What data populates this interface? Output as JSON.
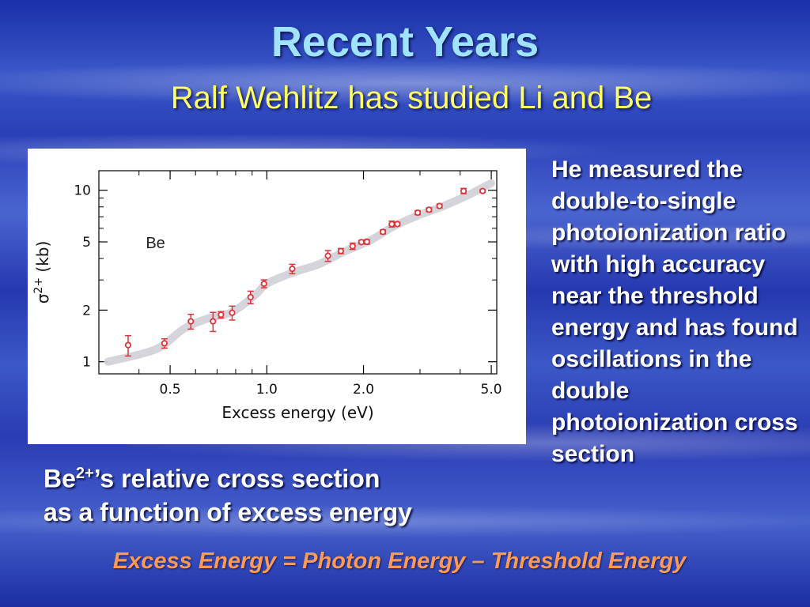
{
  "slide": {
    "title": "Recent Years",
    "subtitle": "Ralf Wehlitz has studied Li and Be",
    "side_text": "He measured the double-to-single photoionization ratio with high accuracy near the threshold energy and has found oscillations in the double photoionization cross section",
    "caption": {
      "prefix": "Be",
      "superscript": "2+",
      "suffix_line1": "’s relative cross section",
      "line2": "as a function of excess energy"
    },
    "formula": "Excess Energy = Photon Energy – Threshold Energy"
  },
  "chart_data": {
    "type": "scatter",
    "title": "",
    "annotation": "Be",
    "xlabel": "Excess energy (eV)",
    "ylabel": "σ2+ (kb)",
    "ylabel_base": "σ",
    "ylabel_sup": "2+",
    "ylabel_unit": " (kb)",
    "xscale": "log",
    "yscale": "log",
    "xlim": [
      0.3,
      5.2
    ],
    "ylim": [
      0.85,
      13
    ],
    "x_ticks": [
      0.5,
      1.0,
      2.0,
      5.0
    ],
    "x_tick_labels": [
      "0.5",
      "1.0",
      "2.0",
      "5.0"
    ],
    "y_ticks": [
      1,
      2,
      5,
      10
    ],
    "y_tick_labels": [
      "1",
      "2",
      "5",
      "10"
    ],
    "grid": false,
    "point_color": "#e0333a",
    "fit_color": "#cfcfd6",
    "series": [
      {
        "points": [
          {
            "x": 0.37,
            "y": 1.25,
            "err": 0.17
          },
          {
            "x": 0.48,
            "y": 1.28,
            "err": 0.08
          },
          {
            "x": 0.58,
            "y": 1.72,
            "err": 0.17
          },
          {
            "x": 0.68,
            "y": 1.72,
            "err": 0.22
          },
          {
            "x": 0.72,
            "y": 1.88,
            "err": 0.08
          },
          {
            "x": 0.78,
            "y": 1.93,
            "err": 0.18
          },
          {
            "x": 0.89,
            "y": 2.38,
            "err": 0.2
          },
          {
            "x": 0.98,
            "y": 2.85,
            "err": 0.15
          },
          {
            "x": 1.2,
            "y": 3.48,
            "err": 0.22
          },
          {
            "x": 1.55,
            "y": 4.15,
            "err": 0.3
          },
          {
            "x": 1.7,
            "y": 4.42,
            "err": 0.15
          },
          {
            "x": 1.85,
            "y": 4.72,
            "err": 0.2
          },
          {
            "x": 1.97,
            "y": 4.98,
            "err": 0.12
          },
          {
            "x": 2.05,
            "y": 5.0,
            "err": 0.15
          },
          {
            "x": 2.3,
            "y": 5.72,
            "err": 0.15
          },
          {
            "x": 2.45,
            "y": 6.35,
            "err": 0.25
          },
          {
            "x": 2.55,
            "y": 6.35,
            "err": 0.15
          },
          {
            "x": 2.95,
            "y": 7.4,
            "err": 0.2
          },
          {
            "x": 3.2,
            "y": 7.7,
            "err": 0.2
          },
          {
            "x": 3.45,
            "y": 8.1,
            "err": 0.2
          },
          {
            "x": 4.1,
            "y": 9.9,
            "err": 0.35
          },
          {
            "x": 4.7,
            "y": 9.9,
            "err": 0.15
          }
        ]
      }
    ],
    "fit_curve": [
      {
        "x": 0.32,
        "y": 1.0
      },
      {
        "x": 0.45,
        "y": 1.18
      },
      {
        "x": 0.55,
        "y": 1.55
      },
      {
        "x": 0.65,
        "y": 1.78
      },
      {
        "x": 0.78,
        "y": 1.95
      },
      {
        "x": 0.92,
        "y": 2.45
      },
      {
        "x": 1.0,
        "y": 2.85
      },
      {
        "x": 1.2,
        "y": 3.3
      },
      {
        "x": 1.45,
        "y": 3.7
      },
      {
        "x": 1.75,
        "y": 4.4
      },
      {
        "x": 2.1,
        "y": 5.1
      },
      {
        "x": 2.5,
        "y": 6.2
      },
      {
        "x": 3.0,
        "y": 7.2
      },
      {
        "x": 3.5,
        "y": 8.0
      },
      {
        "x": 4.2,
        "y": 9.3
      },
      {
        "x": 5.0,
        "y": 11.0
      }
    ]
  }
}
